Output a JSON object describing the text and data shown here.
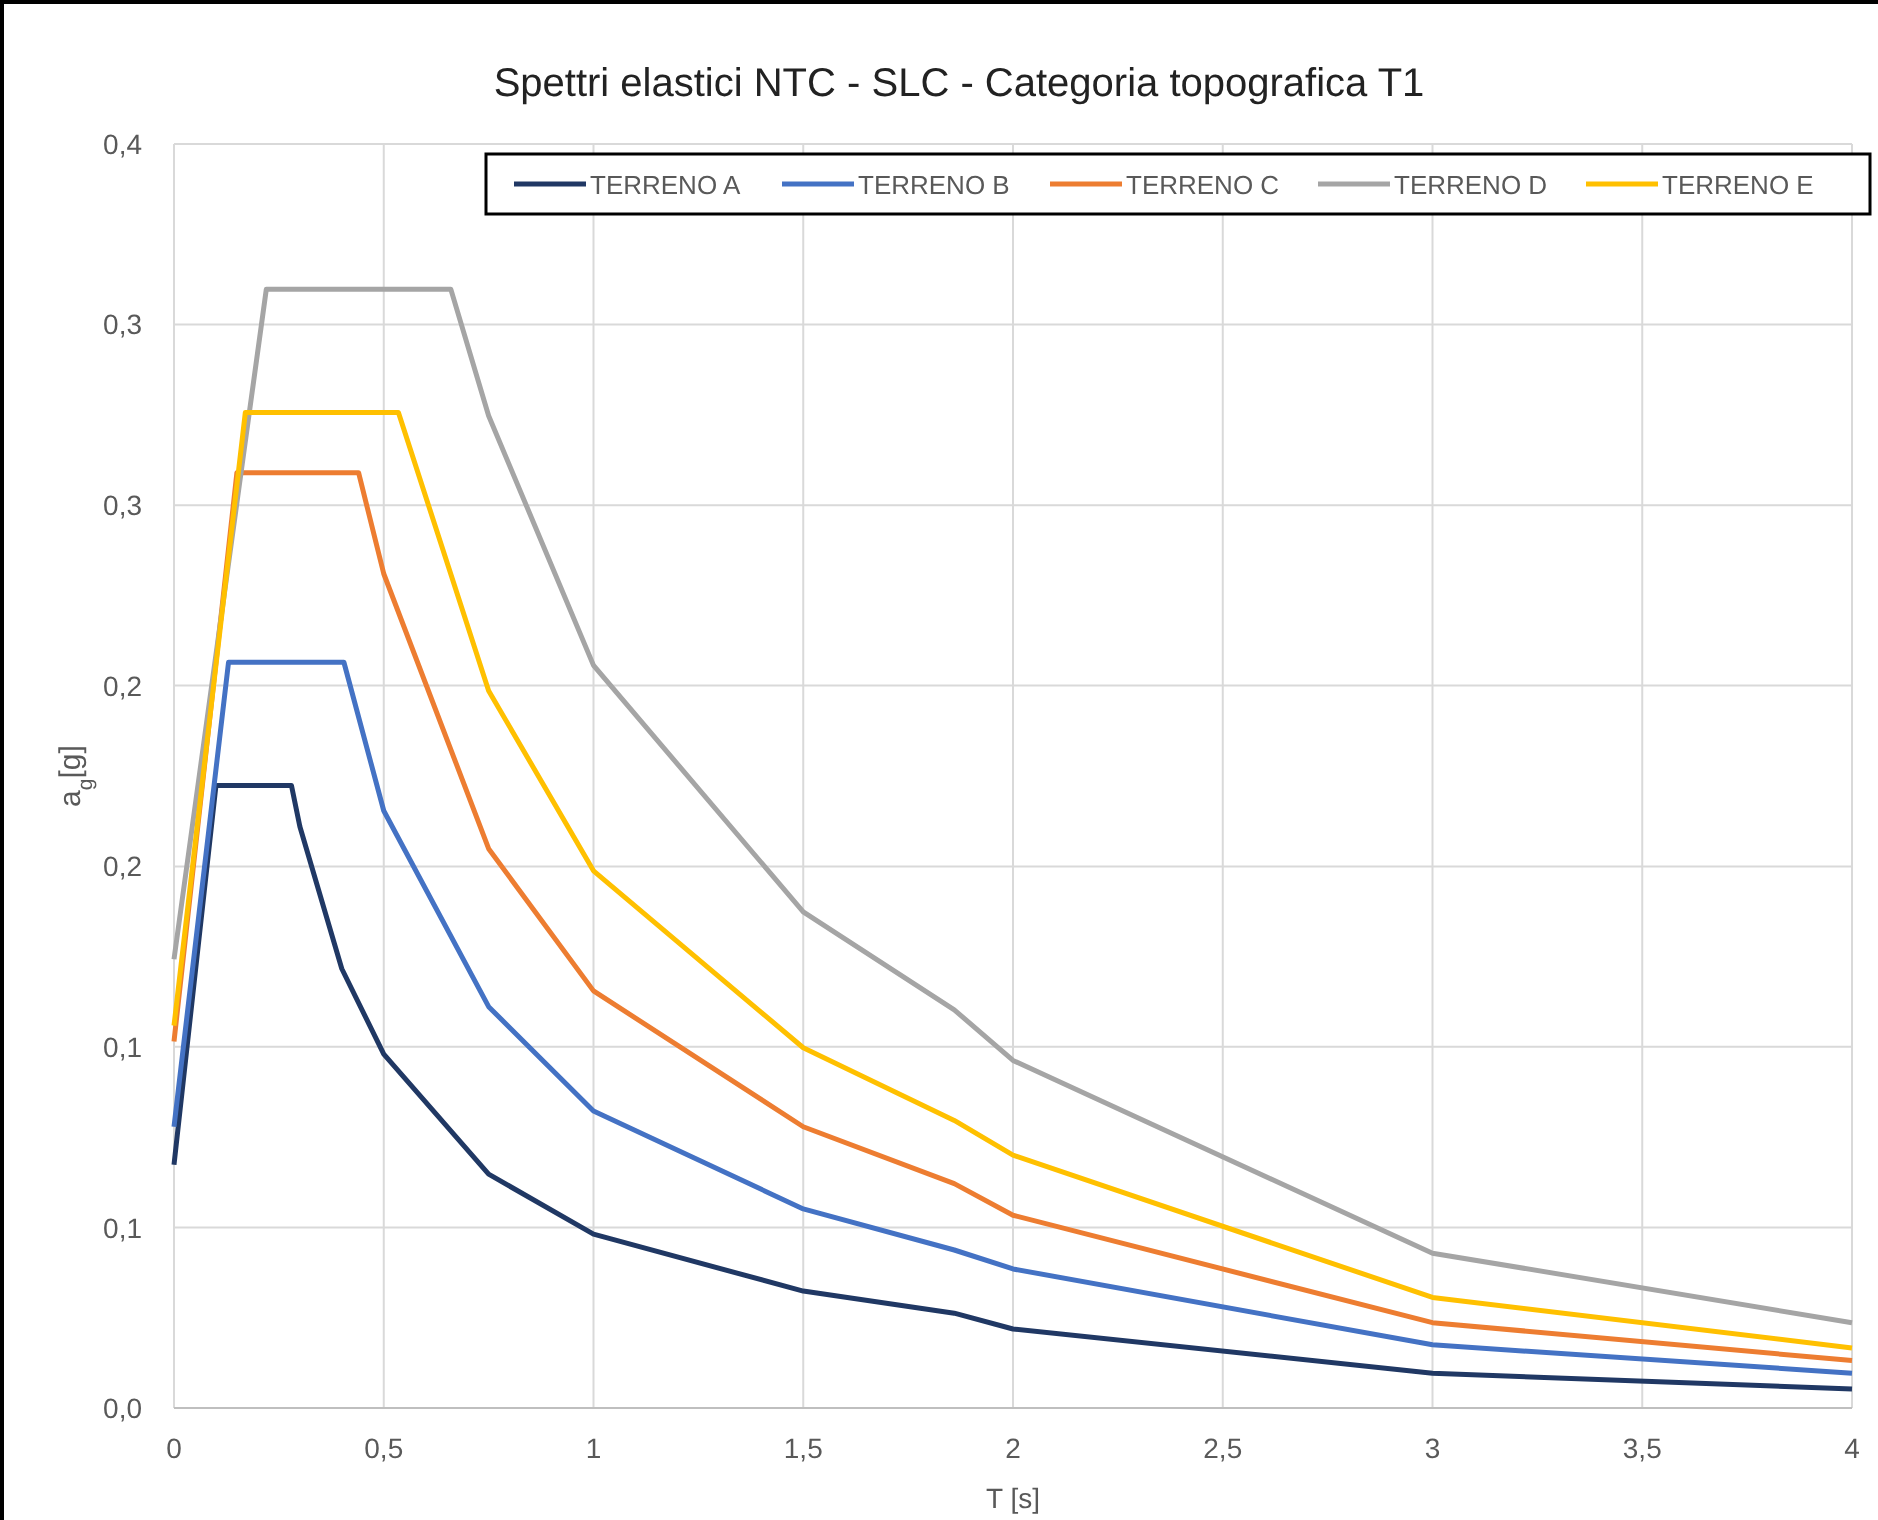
{
  "chart_data": {
    "type": "line",
    "title": "Spettri elastici NTC - SLC - Categoria topografica T1",
    "xlabel": "T [s]",
    "ylabel": "a$_{g}$[g]",
    "xlim": [
      0,
      4
    ],
    "xticks": [
      {
        "value": 0,
        "label": "0"
      },
      {
        "value": 0.5,
        "label": "0,5"
      },
      {
        "value": 1,
        "label": "1"
      },
      {
        "value": 1.5,
        "label": "1,5"
      },
      {
        "value": 2,
        "label": "2"
      },
      {
        "value": 2.5,
        "label": "2,5"
      },
      {
        "value": 3,
        "label": "3"
      },
      {
        "value": 3.5,
        "label": "3,5"
      },
      {
        "value": 4,
        "label": "4"
      }
    ],
    "ylim": [
      0,
      0.4
    ],
    "yticks": [
      {
        "value": 0,
        "label": "0,0"
      },
      {
        "value": 0.0571,
        "label": "0,1"
      },
      {
        "value": 0.1143,
        "label": "0,1"
      },
      {
        "value": 0.1714,
        "label": "0,2"
      },
      {
        "value": 0.2286,
        "label": "0,2"
      },
      {
        "value": 0.2857,
        "label": "0,3"
      },
      {
        "value": 0.3429,
        "label": "0,3"
      },
      {
        "value": 0.4,
        "label": "0,4"
      }
    ],
    "grid": true,
    "legend": "top right",
    "line_style": "solid",
    "marker": "none",
    "series": [
      {
        "name": "TERRENO A",
        "color": "#203864",
        "x": [
          0,
          0.1,
          0.28,
          0.3,
          0.4,
          0.5,
          0.75,
          1,
          1.5,
          1.86,
          2,
          3,
          4
        ],
        "values": [
          0.077,
          0.197,
          0.197,
          0.184,
          0.139,
          0.112,
          0.074,
          0.055,
          0.037,
          0.03,
          0.025,
          0.011,
          0.006
        ]
      },
      {
        "name": "TERRENO B",
        "color": "#4472c4",
        "x": [
          0,
          0.13,
          0.405,
          0.5,
          0.75,
          1,
          1.5,
          1.86,
          2,
          3,
          4
        ],
        "values": [
          0.089,
          0.236,
          0.236,
          0.189,
          0.127,
          0.094,
          0.063,
          0.05,
          0.044,
          0.02,
          0.011
        ]
      },
      {
        "name": "TERRENO C",
        "color": "#ed7d31",
        "x": [
          0,
          0.15,
          0.44,
          0.5,
          0.75,
          1,
          1.5,
          1.86,
          2,
          3,
          4
        ],
        "values": [
          0.116,
          0.296,
          0.296,
          0.264,
          0.177,
          0.132,
          0.089,
          0.071,
          0.061,
          0.027,
          0.015
        ]
      },
      {
        "name": "TERRENO D",
        "color": "#a5a5a5",
        "x": [
          0,
          0.22,
          0.66,
          0.75,
          1,
          1.5,
          1.86,
          2,
          3,
          4
        ],
        "values": [
          0.142,
          0.354,
          0.354,
          0.314,
          0.235,
          0.157,
          0.126,
          0.11,
          0.049,
          0.027
        ]
      },
      {
        "name": "TERRENO E",
        "color": "#ffc000",
        "x": [
          0,
          0.17,
          0.535,
          0.75,
          1,
          1.5,
          1.86,
          2,
          3,
          4
        ],
        "values": [
          0.121,
          0.315,
          0.315,
          0.227,
          0.17,
          0.114,
          0.091,
          0.08,
          0.035,
          0.019
        ]
      }
    ]
  }
}
